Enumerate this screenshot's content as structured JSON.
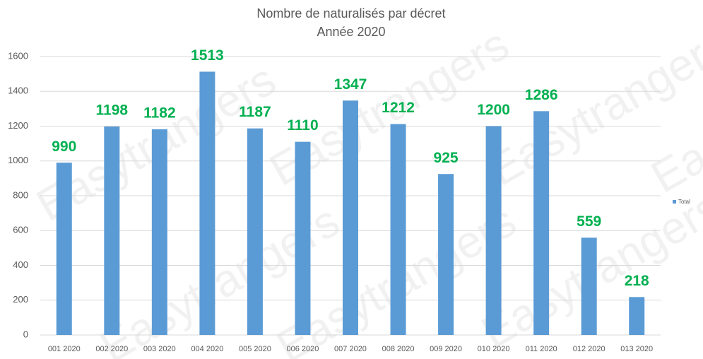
{
  "chart_data": {
    "type": "bar",
    "title": "Nombre de naturalisés par décret",
    "subtitle": "Année 2020",
    "watermark": "Easytrangers",
    "categories": [
      "001 2020",
      "002 2020",
      "003 2020",
      "004 2020",
      "005 2020",
      "006 2020",
      "007 2020",
      "008 2020",
      "009 2020",
      "010 2020",
      "011 2020",
      "012 2020",
      "013 2020"
    ],
    "series": [
      {
        "name": "Total",
        "color": "#5b9bd5",
        "values": [
          990,
          1198,
          1182,
          1513,
          1187,
          1110,
          1347,
          1212,
          925,
          1200,
          1286,
          559,
          218
        ]
      }
    ],
    "value_label_color": "#00b050",
    "ylim": [
      0,
      1600
    ],
    "yticks": [
      0,
      200,
      400,
      600,
      800,
      1000,
      1200,
      1400,
      1600
    ],
    "grid": true,
    "legend": "right"
  }
}
